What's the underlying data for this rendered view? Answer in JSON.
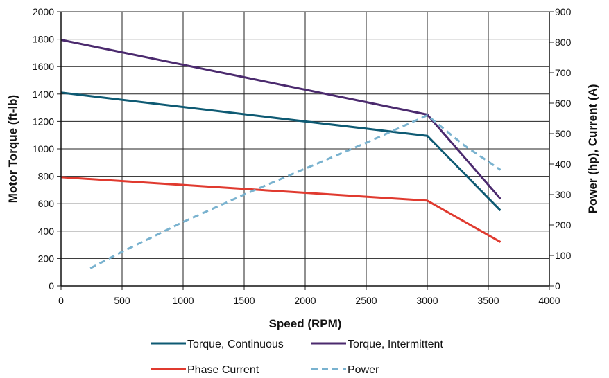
{
  "chart_data": {
    "type": "line",
    "xlabel": "Speed (RPM)",
    "ylabel_left": "Motor Torque (ft-lb)",
    "ylabel_right": "Power (hp), Current (A)",
    "xlim": [
      0,
      4000
    ],
    "ylim_left": [
      0,
      2000
    ],
    "ylim_right": [
      0,
      900
    ],
    "x_ticks": [
      "0",
      "500",
      "1000",
      "1500",
      "2000",
      "2500",
      "3000",
      "3500",
      "4000"
    ],
    "y_left_ticks": [
      "0",
      "200",
      "400",
      "600",
      "800",
      "1000",
      "1200",
      "1400",
      "1600",
      "1800",
      "2000"
    ],
    "y_right_ticks": [
      "0",
      "100",
      "200",
      "300",
      "400",
      "500",
      "600",
      "700",
      "800",
      "900"
    ],
    "grid": true,
    "legend_position": "bottom",
    "series": [
      {
        "name": "Torque, Continuous",
        "axis": "left",
        "color": "#0e5a73",
        "dash": "solid",
        "points": [
          [
            0,
            1410
          ],
          [
            3000,
            1095
          ],
          [
            3600,
            550
          ]
        ]
      },
      {
        "name": "Torque, Intermittent",
        "axis": "left",
        "color": "#4b2a6e",
        "dash": "solid",
        "points": [
          [
            0,
            1795
          ],
          [
            3000,
            1250
          ],
          [
            3600,
            635
          ]
        ]
      },
      {
        "name": "Phase Current",
        "axis": "right",
        "color": "#e03a2f",
        "dash": "solid",
        "points": [
          [
            0,
            357
          ],
          [
            3000,
            280
          ],
          [
            3600,
            144
          ]
        ]
      },
      {
        "name": "Power",
        "axis": "right",
        "color": "#79b2cf",
        "dash": "dashed",
        "points": [
          [
            240,
            58
          ],
          [
            500,
            112
          ],
          [
            1000,
            210
          ],
          [
            1500,
            300
          ],
          [
            2000,
            385
          ],
          [
            2500,
            470
          ],
          [
            3000,
            560
          ],
          [
            3300,
            462
          ],
          [
            3600,
            381
          ]
        ]
      }
    ]
  }
}
